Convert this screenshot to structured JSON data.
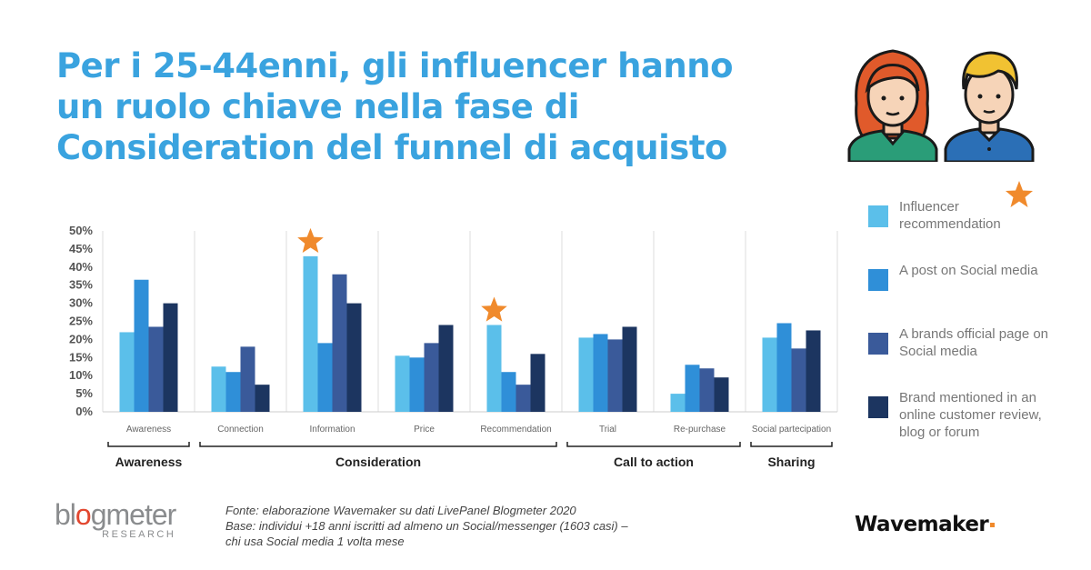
{
  "title": {
    "line1": "Per i 25-44enni, gli influencer hanno",
    "line2": "un ruolo chiave nella fase di",
    "line3": "Consideration del funnel di acquisto"
  },
  "chart_data": {
    "type": "bar",
    "categories": [
      "Awareness",
      "Connection",
      "Information",
      "Price",
      "Recommendation",
      "Trial",
      "Re-purchase",
      "Social partecipation"
    ],
    "series": [
      {
        "name": "Influencer recommendation",
        "values": [
          22,
          12.5,
          43,
          15.5,
          24,
          20.5,
          5,
          20.5
        ]
      },
      {
        "name": "A post on Social media",
        "values": [
          36.5,
          11,
          19,
          15,
          11,
          21.5,
          13,
          24.5
        ]
      },
      {
        "name": "A brands official page on Social media",
        "values": [
          23.5,
          18,
          38,
          19,
          7.5,
          20,
          12,
          17.5
        ]
      },
      {
        "name": "Brand mentioned in an online customer review, blog or forum",
        "values": [
          30,
          7.5,
          30,
          24,
          16,
          23.5,
          9.5,
          22.5
        ]
      }
    ],
    "colors": [
      "#5bbfea",
      "#2f8fd8",
      "#3a5a9a",
      "#1c3560"
    ],
    "ylim": [
      0,
      50
    ],
    "yticks": [
      "0%",
      "5%",
      "10%",
      "15%",
      "20%",
      "25%",
      "30%",
      "35%",
      "40%",
      "45%",
      "50%"
    ],
    "stars_on": [
      "Information",
      "Recommendation"
    ],
    "groups": [
      {
        "label": "Awareness",
        "from": 0,
        "to": 0
      },
      {
        "label": "Consideration",
        "from": 1,
        "to": 4
      },
      {
        "label": "Call to action",
        "from": 5,
        "to": 6
      },
      {
        "label": "Sharing",
        "from": 7,
        "to": 7
      }
    ],
    "grid": false
  },
  "legend": {
    "items": [
      {
        "label": "Influencer recommendation",
        "color": "#5bbfea"
      },
      {
        "label": "A post on Social media",
        "color": "#2f8fd8"
      },
      {
        "label": "A brands official page on Social media",
        "color": "#3a5a9a"
      },
      {
        "label": "Brand mentioned in an online customer review, blog or forum",
        "color": "#1c3560"
      }
    ],
    "star_color": "#f08a2c"
  },
  "source": {
    "line1": "Fonte: elaborazione Wavemaker su dati LivePanel Blogmeter 2020",
    "line2": "Base: individui +18 anni iscritti ad almeno un Social/messenger (1603 casi) –",
    "line3": "chi usa Social media 1 volta mese"
  },
  "logos": {
    "blogmeter_a": "bl",
    "blogmeter_b": "g",
    "blogmeter_c": "meter",
    "blogmeter_o": "o",
    "blogmeter_sub": "RESEARCH",
    "wavemaker": "Wavemaker"
  }
}
